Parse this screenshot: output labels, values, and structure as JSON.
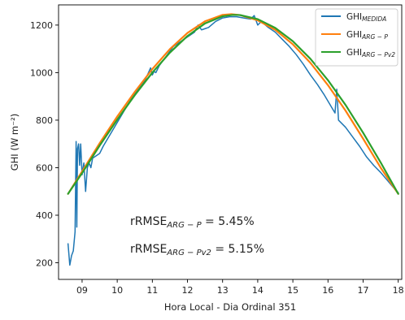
{
  "chart_data": {
    "type": "line",
    "title": "",
    "xlabel": "Hora Local - Dia Ordinal 351",
    "ylabel": "GHI (W m⁻²)",
    "xlim": [
      8.33,
      18.1
    ],
    "ylim": [
      130,
      1285
    ],
    "xticks": [
      9,
      10,
      11,
      12,
      13,
      14,
      15,
      16,
      17,
      18
    ],
    "xtick_labels": [
      "09",
      "10",
      "11",
      "12",
      "13",
      "14",
      "15",
      "16",
      "17",
      "18"
    ],
    "yticks": [
      200,
      400,
      600,
      800,
      1000,
      1200
    ],
    "grid": false,
    "legend_position": "top-right",
    "series": [
      {
        "name": "GHI_MEDIDA",
        "color": "#1f77b4",
        "x": [
          8.6,
          8.65,
          8.7,
          8.75,
          8.8,
          8.83,
          8.85,
          8.87,
          8.9,
          8.93,
          8.96,
          9.0,
          9.05,
          9.1,
          9.15,
          9.2,
          9.25,
          9.3,
          9.4,
          9.5,
          9.6,
          9.8,
          10.0,
          10.2,
          10.4,
          10.6,
          10.8,
          10.95,
          11.0,
          11.05,
          11.1,
          11.2,
          11.4,
          11.6,
          11.8,
          12.0,
          12.2,
          12.3,
          12.4,
          12.6,
          12.8,
          13.0,
          13.2,
          13.4,
          13.6,
          13.8,
          13.9,
          14.0,
          14.1,
          14.3,
          14.5,
          14.7,
          14.9,
          15.1,
          15.3,
          15.5,
          15.7,
          15.9,
          16.1,
          16.2,
          16.25,
          16.3,
          16.5,
          16.7,
          16.9,
          17.1,
          17.3,
          17.5,
          17.7,
          17.9,
          18.0
        ],
        "y": [
          280,
          190,
          230,
          250,
          330,
          710,
          350,
          680,
          700,
          610,
          700,
          570,
          620,
          500,
          600,
          620,
          600,
          640,
          650,
          660,
          690,
          740,
          790,
          840,
          890,
          930,
          970,
          1020,
          990,
          1005,
          1000,
          1030,
          1070,
          1110,
          1130,
          1150,
          1170,
          1200,
          1180,
          1190,
          1215,
          1230,
          1235,
          1235,
          1230,
          1225,
          1240,
          1200,
          1215,
          1190,
          1170,
          1140,
          1110,
          1075,
          1035,
          990,
          950,
          905,
          855,
          830,
          930,
          800,
          770,
          730,
          690,
          645,
          610,
          580,
          545,
          510,
          495
        ]
      },
      {
        "name": "GHI_ARG-P",
        "color": "#ff7f0e",
        "x": [
          8.6,
          9.0,
          9.5,
          10.0,
          10.5,
          11.0,
          11.5,
          12.0,
          12.5,
          13.0,
          13.25,
          13.5,
          14.0,
          14.5,
          15.0,
          15.5,
          16.0,
          16.5,
          17.0,
          17.5,
          18.0
        ],
        "y": [
          490,
          584,
          703,
          815,
          919,
          1015,
          1099,
          1167,
          1216,
          1243,
          1246,
          1242,
          1220,
          1180,
          1119,
          1041,
          947,
          840,
          722,
          600,
          490
        ]
      },
      {
        "name": "GHI_ARG-Pv2",
        "color": "#2ca02c",
        "x": [
          8.6,
          9.0,
          9.5,
          10.0,
          10.5,
          11.0,
          11.5,
          12.0,
          12.5,
          13.0,
          13.3,
          13.5,
          14.0,
          14.5,
          15.0,
          15.5,
          16.0,
          16.5,
          17.0,
          17.5,
          18.0
        ],
        "y": [
          490,
          577,
          693,
          802,
          905,
          1000,
          1084,
          1154,
          1207,
          1237,
          1243,
          1242,
          1225,
          1188,
          1132,
          1058,
          968,
          864,
          747,
          622,
          490
        ]
      }
    ],
    "annotations": [
      {
        "base": "rRMSE",
        "sub": "ARG − P",
        "rest": " = 5.45%"
      },
      {
        "base": "rRMSE",
        "sub": "ARG − Pv2",
        "rest": " = 5.15%"
      }
    ],
    "legend": [
      {
        "base": "GHI",
        "sub": "MEDIDA",
        "color": "#1f77b4"
      },
      {
        "base": "GHI",
        "sub": "ARG − P",
        "color": "#ff7f0e"
      },
      {
        "base": "GHI",
        "sub": "ARG − Pv2",
        "color": "#2ca02c"
      }
    ]
  }
}
